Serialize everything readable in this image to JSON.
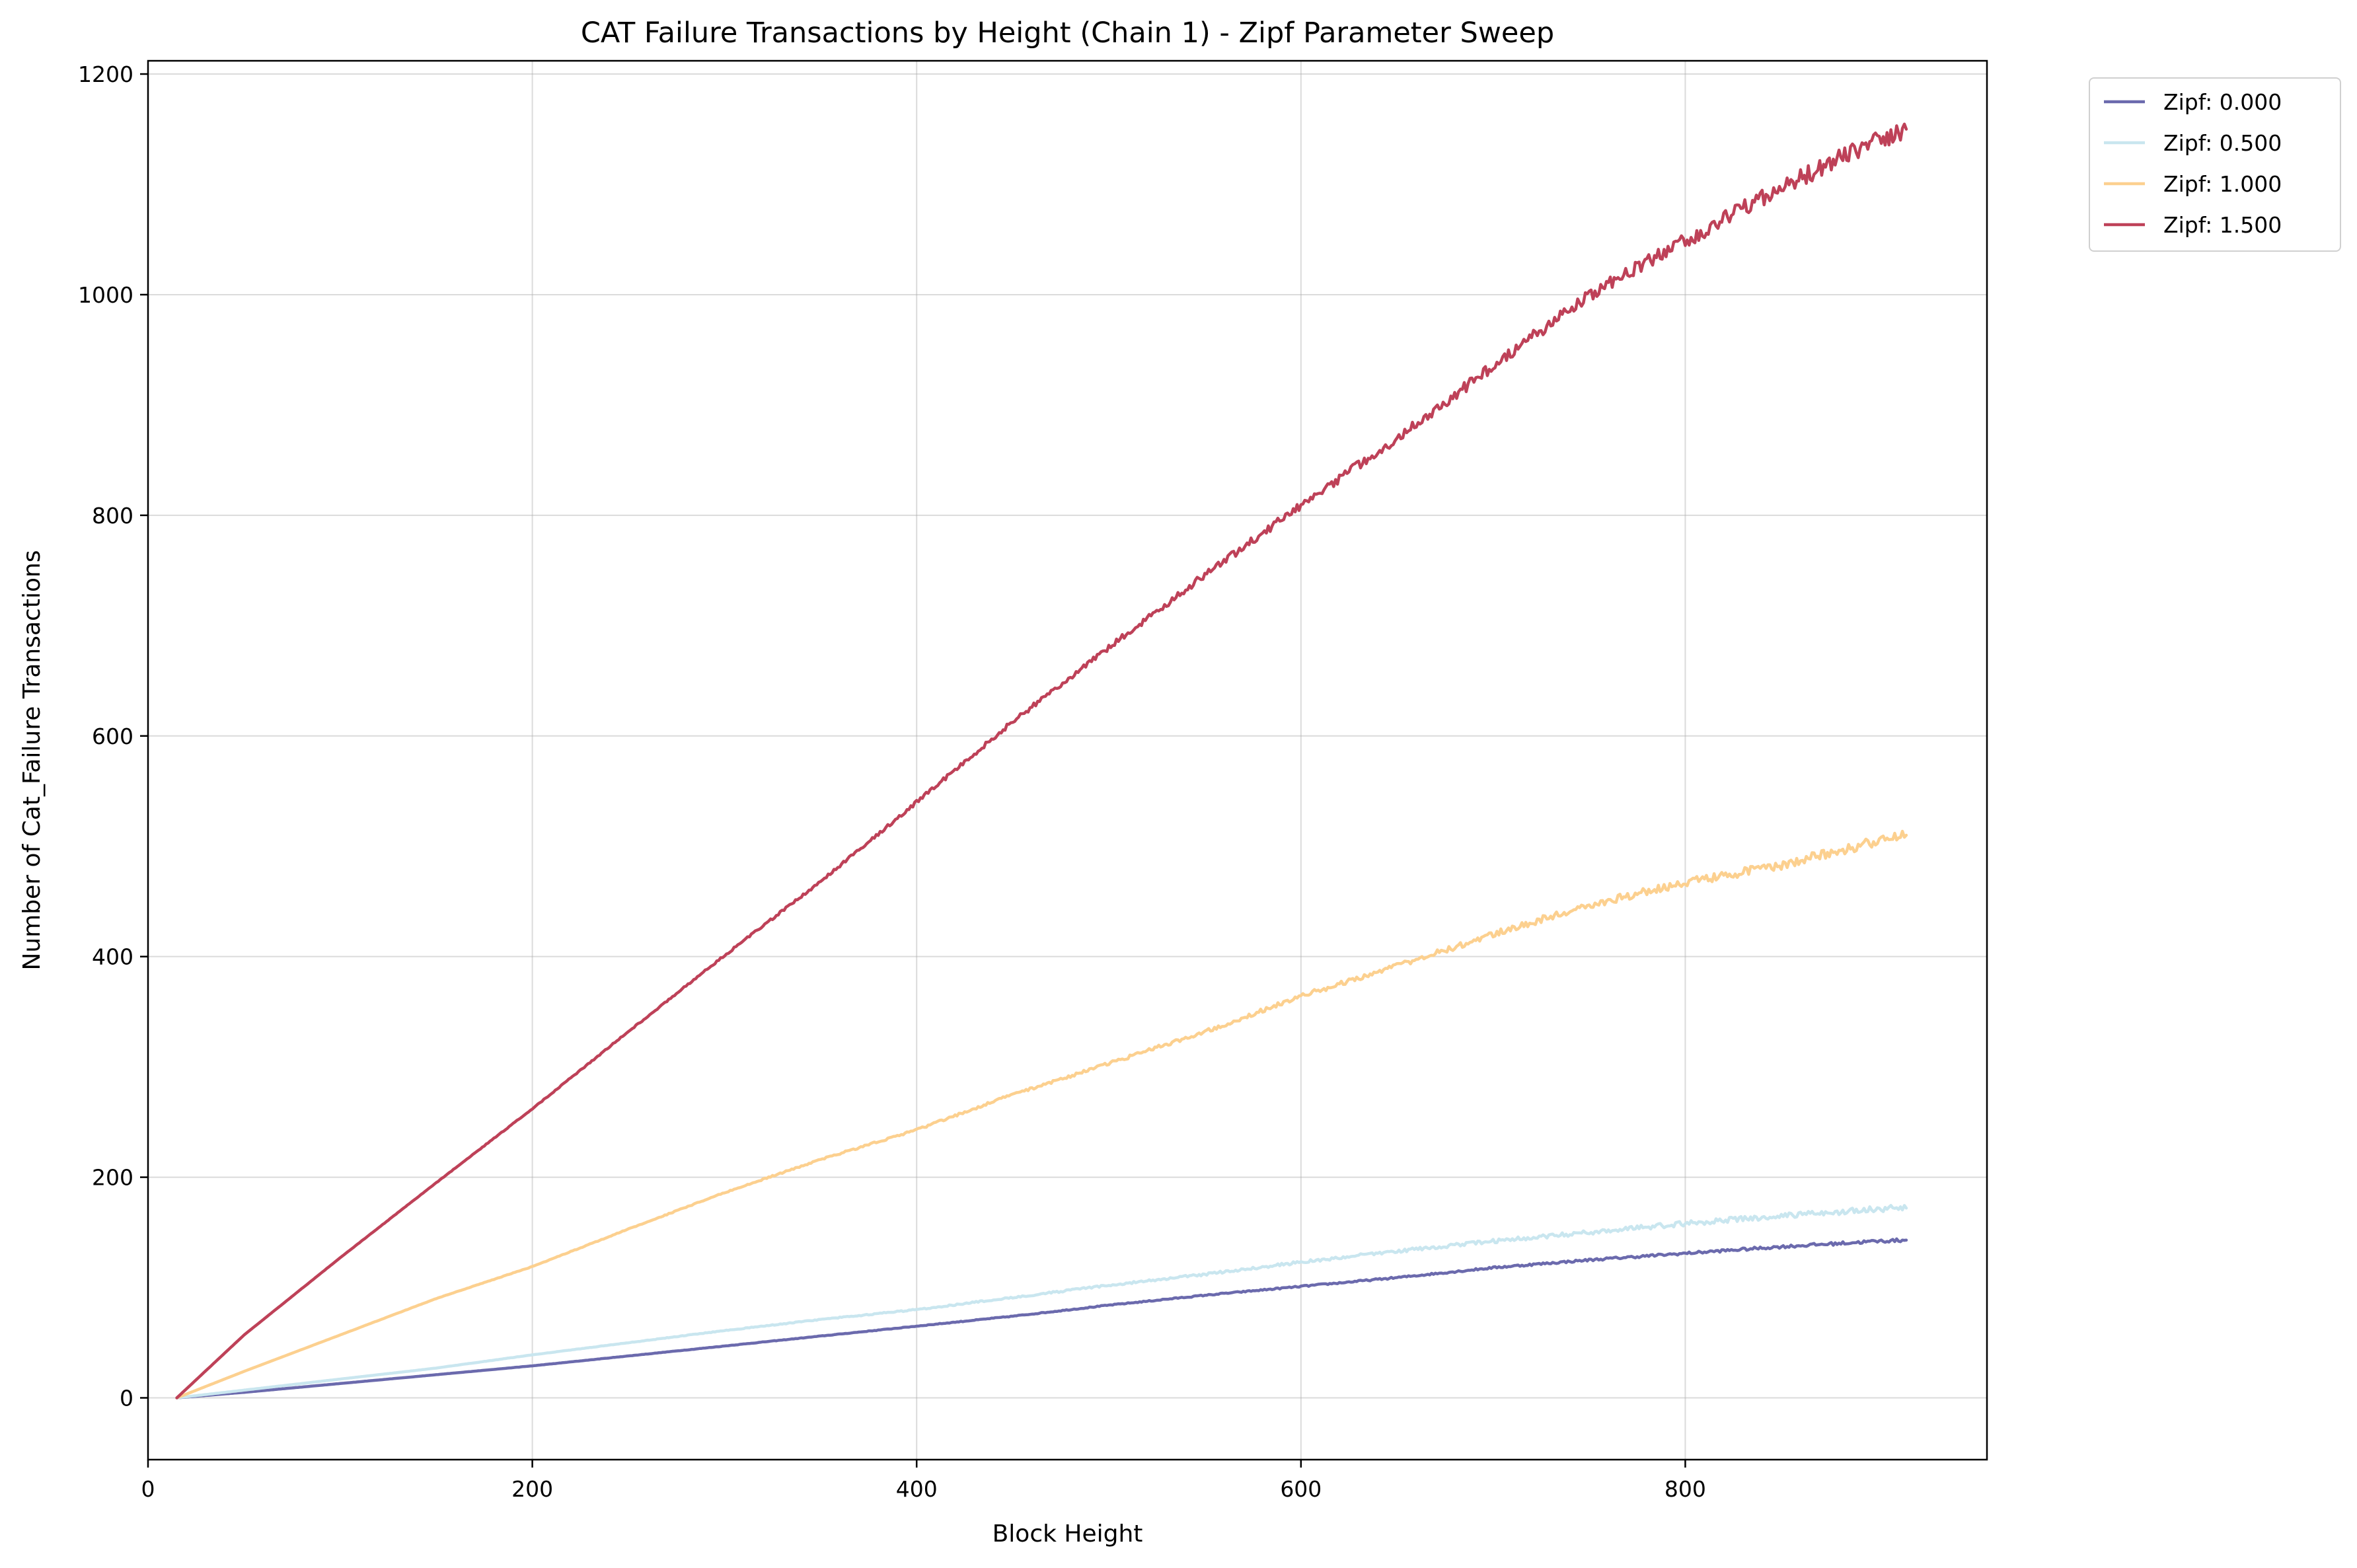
{
  "chart_data": {
    "type": "line",
    "title": "CAT Failure Transactions by Height (Chain 1) - Zipf Parameter Sweep",
    "xlabel": "Block Height",
    "ylabel": "Number of Cat_Failure Transactions",
    "xlim": [
      0,
      957
    ],
    "ylim": [
      -56,
      1212
    ],
    "x_ticks": [
      0,
      200,
      400,
      600,
      800
    ],
    "y_ticks": [
      0,
      200,
      400,
      600,
      800,
      1000,
      1200
    ],
    "grid": true,
    "legend_position": "outside-top-right",
    "series": [
      {
        "name": "Zipf: 0.000",
        "color": "#6b6aad",
        "x": [
          15,
          50,
          100,
          150,
          200,
          250,
          300,
          350,
          400,
          450,
          500,
          550,
          600,
          650,
          700,
          750,
          800,
          850,
          900,
          915
        ],
        "y": [
          0,
          5,
          13,
          21,
          29,
          38,
          47,
          56,
          65,
          74,
          84,
          93,
          101,
          109,
          118,
          125,
          131,
          137,
          142,
          143
        ]
      },
      {
        "name": "Zipf: 0.500",
        "color": "#c9e6ef",
        "x": [
          15,
          50,
          100,
          150,
          200,
          250,
          300,
          350,
          400,
          450,
          500,
          550,
          600,
          650,
          700,
          750,
          800,
          850,
          900,
          915
        ],
        "y": [
          0,
          7,
          17,
          27,
          39,
          50,
          61,
          71,
          80,
          91,
          102,
          112,
          123,
          133,
          142,
          150,
          158,
          165,
          171,
          172
        ]
      },
      {
        "name": "Zipf: 1.000",
        "color": "#fcd08f",
        "x": [
          15,
          50,
          100,
          150,
          200,
          250,
          300,
          350,
          400,
          450,
          500,
          550,
          600,
          650,
          700,
          750,
          800,
          850,
          900,
          915
        ],
        "y": [
          0,
          24,
          57,
          90,
          119,
          153,
          186,
          216,
          243,
          275,
          303,
          332,
          364,
          392,
          420,
          447,
          467,
          483,
          505,
          510
        ]
      },
      {
        "name": "Zipf: 1.500",
        "color": "#be4158",
        "x": [
          15,
          50,
          100,
          150,
          200,
          250,
          300,
          350,
          400,
          450,
          500,
          550,
          600,
          650,
          700,
          750,
          800,
          850,
          900,
          915
        ],
        "y": [
          0,
          57,
          127,
          195,
          262,
          332,
          401,
          468,
          540,
          613,
          680,
          746,
          809,
          870,
          935,
          1000,
          1049,
          1097,
          1140,
          1150
        ]
      }
    ]
  }
}
